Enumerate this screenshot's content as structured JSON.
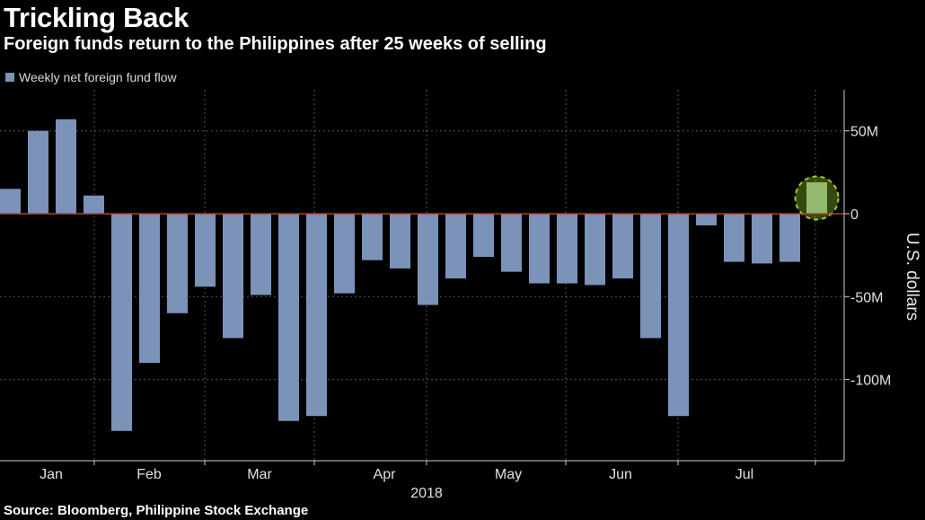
{
  "header": {
    "title": "Trickling Back",
    "subtitle": "Foreign funds return to the Philippines after 25 weeks of selling"
  },
  "legend": {
    "label": "Weekly net foreign fund flow"
  },
  "footer": {
    "source": "Source: Bloomberg, Philippine Stock Exchange"
  },
  "colors": {
    "bar": "#7b93b8",
    "highlight_bar": "#8fb08f",
    "highlight_ring": "#9acd32",
    "zero_line": "#c0392b",
    "grid": "#555555",
    "background": "#000000"
  },
  "chart_data": {
    "type": "bar",
    "title": "Trickling Back",
    "subtitle": "Foreign funds return to the Philippines after 25 weeks of selling",
    "ylabel": "U.S. dollars",
    "xlabel": "2018",
    "ylim": [
      -150,
      75
    ],
    "unit": "M",
    "y_ticks": [
      {
        "value": 50,
        "label": "50M"
      },
      {
        "value": 0,
        "label": "0"
      },
      {
        "value": -50,
        "label": "-50M"
      },
      {
        "value": -100,
        "label": "-100M"
      }
    ],
    "x_ticks": [
      "Jan",
      "Feb",
      "Mar",
      "Apr",
      "May",
      "Jun",
      "Jul"
    ],
    "series": [
      {
        "values": [
          15,
          50,
          57,
          11,
          -131,
          -90,
          -60,
          -44,
          -75,
          -49,
          -125,
          -122,
          -48,
          -28,
          -33,
          -55,
          -39,
          -26,
          -35,
          -42,
          -42,
          -43,
          -39,
          -75,
          -122,
          -7,
          -29,
          -30,
          -29,
          19
        ]
      }
    ],
    "highlight_index": 29,
    "grid": true,
    "legend_position": "top-left"
  }
}
